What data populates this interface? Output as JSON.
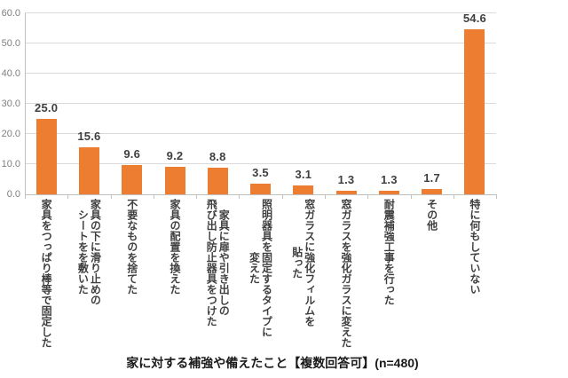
{
  "chart_data": {
    "type": "bar",
    "title": "家に対する補強や備えたこと【複数回答可】(n=480)",
    "categories": [
      "家具をつっぱり棒等で固定した",
      "家具の下に滑り止めの\nシートをを敷いた",
      "不要なものを捨てた",
      "家具の配置を換えた",
      "家具に扉や引き出しの\n飛び出し防止器具をつけた",
      "照明器具を固定するタイプに\n変えた",
      "窓ガラスに強化フィルムを\n貼った",
      "窓ガラスを強化ガラスに変えた",
      "耐震補強工事を行った",
      "その他",
      "特に何もしていない"
    ],
    "values": [
      25.0,
      15.6,
      9.6,
      9.2,
      8.8,
      3.5,
      3.1,
      1.3,
      1.3,
      1.7,
      54.6
    ],
    "value_labels": [
      "25.0",
      "15.6",
      "9.6",
      "9.2",
      "8.8",
      "3.5",
      "3.1",
      "1.3",
      "1.3",
      "1.7",
      "54.6"
    ],
    "xlabel": "",
    "ylabel": "",
    "ylim": [
      0,
      60
    ],
    "y_tick_interval": 10,
    "y_tick_labels": [
      "0.0",
      "10.0",
      "20.0",
      "30.0",
      "40.0",
      "50.0",
      "60.0"
    ],
    "grid": true,
    "legend": "none",
    "colors": {
      "bar": "#ED7D31",
      "grid": "#DADADA",
      "axis": "#C0C0C0",
      "y_tick_text": "#7F7F7F",
      "value_text": "#3F3F3F",
      "category_text": "#3F3F3F",
      "title_text": "#1A1A1A",
      "background": "#FFFFFF"
    }
  }
}
